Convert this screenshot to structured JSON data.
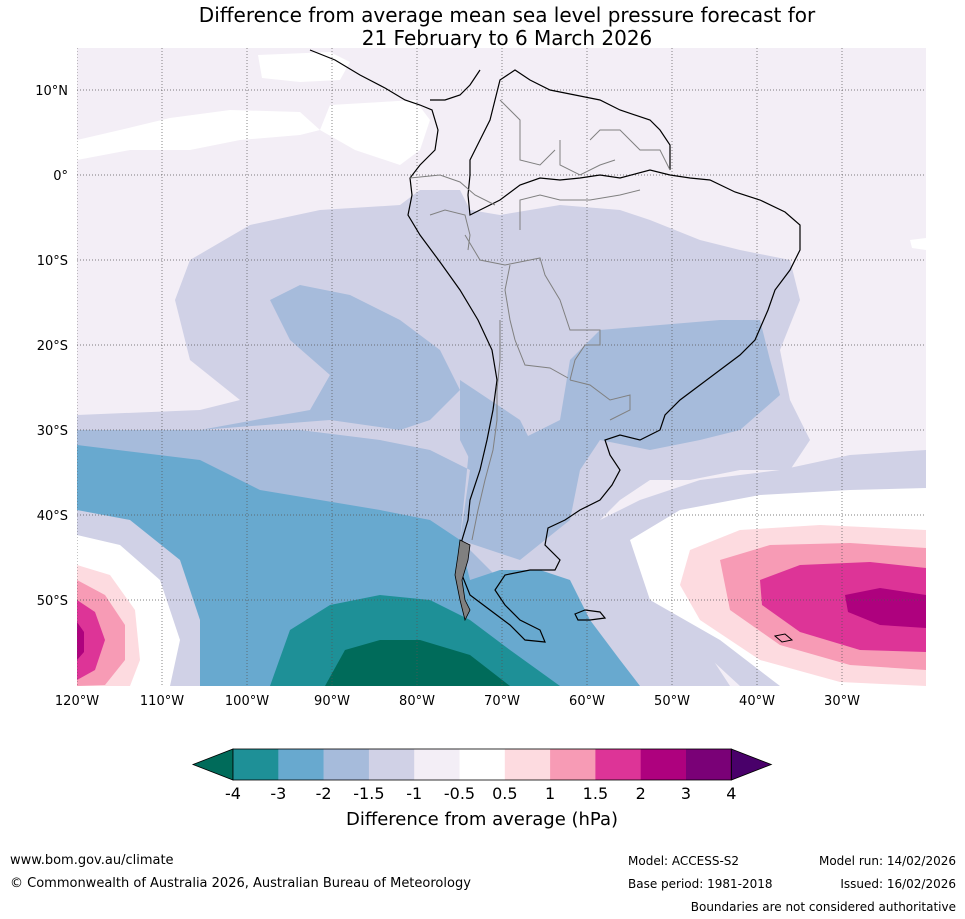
{
  "title": {
    "line1": "Difference from average mean sea level pressure forecast for",
    "line2": "21 February to 6 March 2026"
  },
  "map": {
    "lat_labels": [
      "10°N",
      "0°",
      "10°S",
      "20°S",
      "30°S",
      "40°S",
      "50°S"
    ],
    "lon_labels": [
      "120°W",
      "110°W",
      "100°W",
      "90°W",
      "80°W",
      "70°W",
      "60°W",
      "50°W",
      "40°W",
      "30°W"
    ]
  },
  "colorbar": {
    "ticks": [
      "-4",
      "-3",
      "-2",
      "-1.5",
      "-1",
      "-0.5",
      "0.5",
      "1",
      "1.5",
      "2",
      "3",
      "4"
    ],
    "colors": [
      "#006b5a",
      "#1e9097",
      "#68a9cf",
      "#a6bbdb",
      "#d0d1e6",
      "#f3eef6",
      "#ffffff",
      "#fddbe0",
      "#f79bb5",
      "#dd3497",
      "#ae017e",
      "#7a0177",
      "#49006a"
    ],
    "label": "Difference from average (hPa)"
  },
  "footer": {
    "website": "www.bom.gov.au/climate",
    "copyright": "© Commonwealth of Australia 2026, Australian Bureau of Meteorology",
    "model": "Model: ACCESS-S2",
    "base_period": "Base period: 1981-2018",
    "model_run": "Model run: 14/02/2026",
    "issued": "Issued: 16/02/2026",
    "boundaries": "Boundaries are not considered authoritative"
  }
}
